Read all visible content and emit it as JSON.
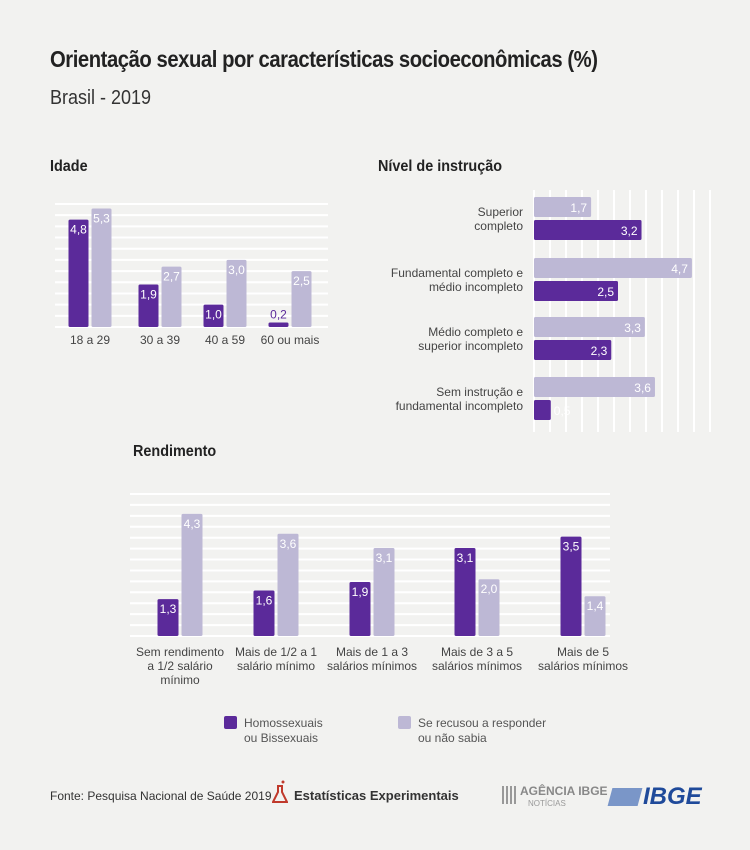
{
  "title": "Orientação sexual por características socioeconômicas (%)",
  "subtitle": "Brasil - 2019",
  "colors": {
    "homo": "#5b2a9a",
    "recusou": "#bdb8d5",
    "grid": "#ffffff",
    "background": "#f2f2f0"
  },
  "legend": {
    "homo": [
      "Homossexuais",
      "ou Bissexuais"
    ],
    "recusou": [
      "Se recusou a responder",
      "ou não sabia"
    ]
  },
  "footer": {
    "source": "Fonte: Pesquisa Nacional de Saúde 2019",
    "brand": "Estatísticas Experimentais",
    "agencia": "AGÊNCIA IBGE",
    "noticias": "NOTÍCIAS",
    "ibge": "IBGE"
  },
  "chart_data": [
    {
      "type": "bar",
      "title": "Idade",
      "orientation": "vertical",
      "categories": [
        "18 a 29",
        "30 a 39",
        "40 a 59",
        "60 ou mais"
      ],
      "series": [
        {
          "name": "Homossexuais ou Bissexuais",
          "values": [
            4.8,
            1.9,
            1.0,
            0.2
          ]
        },
        {
          "name": "Se recusou a responder ou não sabia",
          "values": [
            5.3,
            2.7,
            3.0,
            2.5
          ]
        }
      ],
      "ylim": [
        0,
        5.5
      ],
      "grid": true
    },
    {
      "type": "bar",
      "title": "Nível de instrução",
      "orientation": "horizontal",
      "categories": [
        [
          "Superior",
          "completo"
        ],
        [
          "Fundamental completo e",
          "médio incompleto"
        ],
        [
          "Médio completo e",
          "superior incompleto"
        ],
        [
          "Sem instrução e",
          "fundamental incompleto"
        ]
      ],
      "series": [
        {
          "name": "Homossexuais ou Bissexuais",
          "values": [
            3.2,
            2.5,
            2.3,
            0.5
          ]
        },
        {
          "name": "Se recusou a responder ou não sabia",
          "values": [
            1.7,
            4.7,
            3.3,
            3.6
          ]
        }
      ],
      "xlim": [
        0,
        5.2
      ],
      "grid": true
    },
    {
      "type": "bar",
      "title": "Rendimento",
      "orientation": "vertical",
      "categories": [
        [
          "Sem rendimento",
          "a 1/2 salário",
          "mínimo"
        ],
        [
          "Mais de 1/2 a 1",
          "salário mínimo"
        ],
        [
          "Mais de 1 a 3",
          "salários mínimos"
        ],
        [
          "Mais de 3 a 5",
          "salários mínimos"
        ],
        [
          "Mais de 5",
          "salários mínimos"
        ]
      ],
      "series": [
        {
          "name": "Homossexuais ou Bissexuais",
          "values": [
            1.3,
            1.6,
            1.9,
            3.1,
            3.5
          ]
        },
        {
          "name": "Se recusou a responder ou não sabia",
          "values": [
            4.3,
            3.6,
            3.1,
            2.0,
            1.4
          ]
        }
      ],
      "ylim": [
        0,
        5
      ],
      "grid": true
    }
  ]
}
